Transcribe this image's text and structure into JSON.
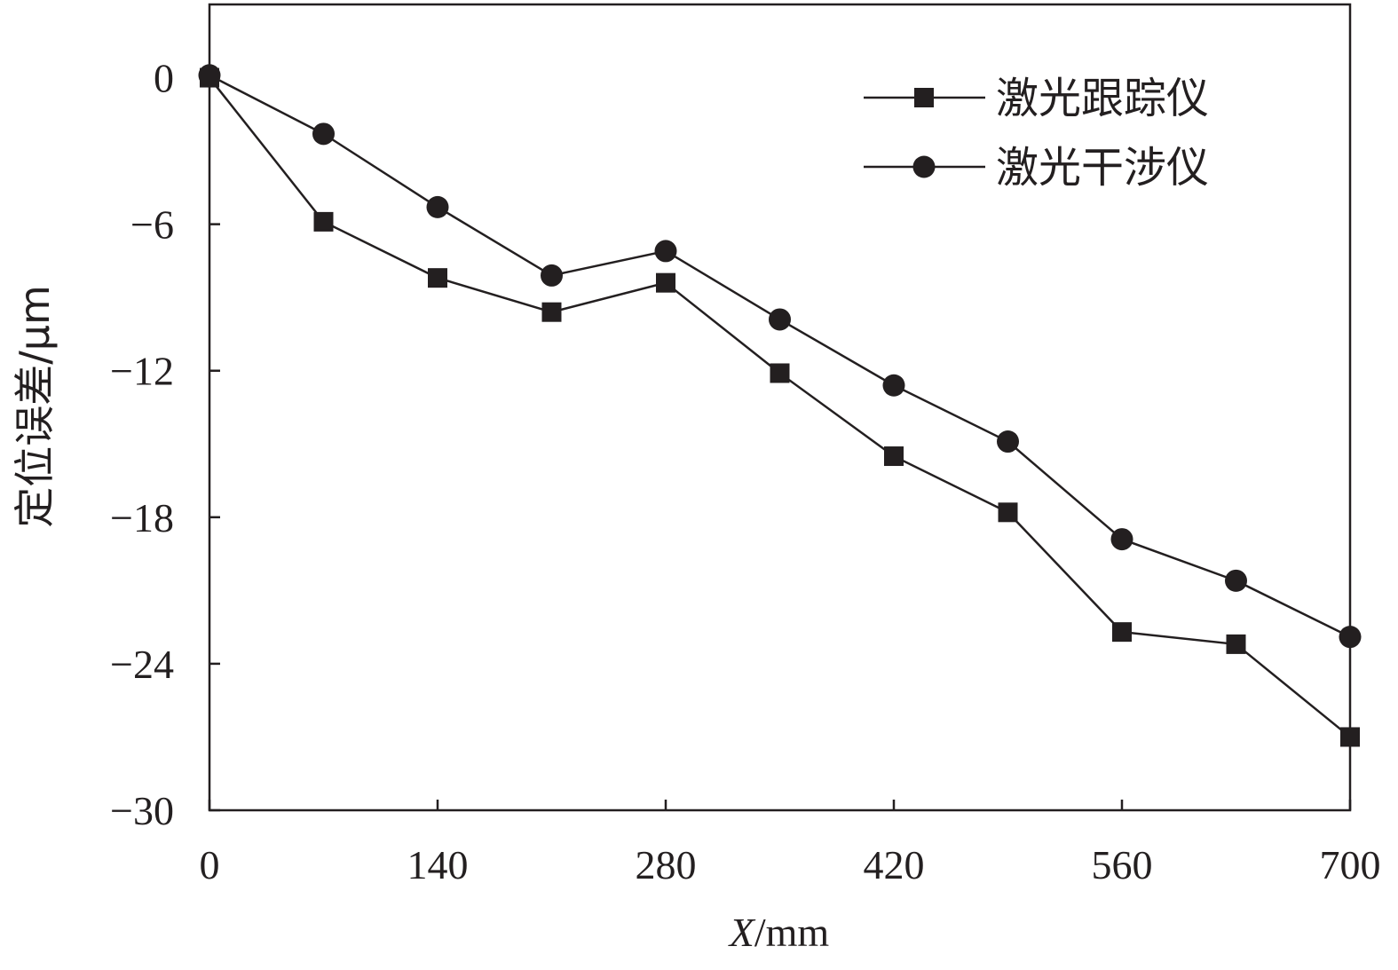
{
  "chart_data": {
    "type": "line",
    "xlabel": {
      "var": "X",
      "unit": "/mm"
    },
    "ylabel": "定位误差/μm",
    "xlim": [
      0,
      700
    ],
    "ylim": [
      -30,
      3
    ],
    "x_ticks": [
      "0",
      "140",
      "280",
      "420",
      "560",
      "700"
    ],
    "x_tick_values": [
      0,
      140,
      280,
      420,
      560,
      700
    ],
    "y_ticks": [
      "0",
      "−6",
      "−12",
      "−18",
      "−24",
      "−30"
    ],
    "y_tick_values": [
      0,
      -6,
      -12,
      -18,
      -24,
      -30
    ],
    "grid": false,
    "legend_position": "top-right",
    "x": [
      0,
      70,
      140,
      210,
      280,
      350,
      420,
      490,
      560,
      630,
      700
    ],
    "series": [
      {
        "name": "激光跟踪仪",
        "marker": "square",
        "values": [
          0,
          -5.9,
          -8.2,
          -9.6,
          -8.4,
          -12.1,
          -15.5,
          -17.8,
          -22.7,
          -23.2,
          -27.0
        ]
      },
      {
        "name": "激光干涉仪",
        "marker": "circle",
        "values": [
          0.1,
          -2.3,
          -5.3,
          -8.1,
          -7.1,
          -9.9,
          -12.6,
          -14.9,
          -18.9,
          -20.6,
          -22.9
        ]
      }
    ],
    "colors": {
      "ink": "#231f20"
    }
  }
}
